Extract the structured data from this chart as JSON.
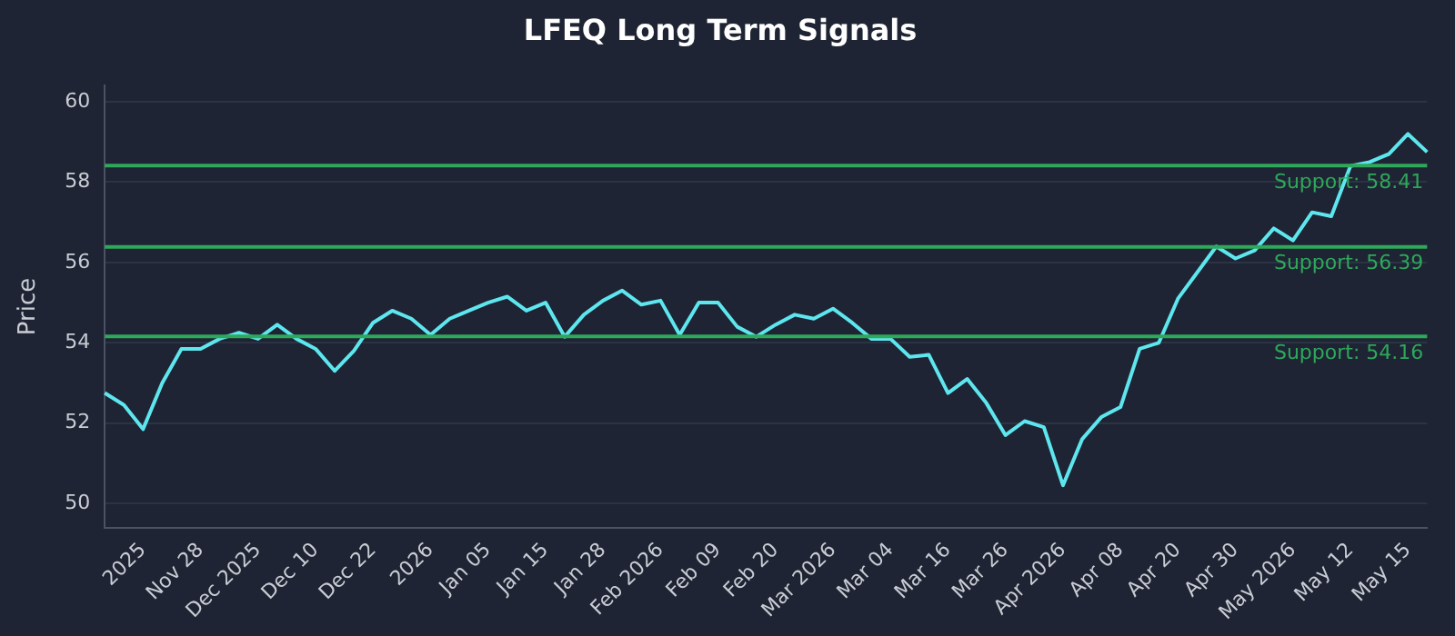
{
  "chart_data": {
    "type": "line",
    "title": "LFEQ Long Term Signals",
    "ylabel": "Price",
    "categories": [
      null,
      null,
      "2025",
      null,
      null,
      "Nov 28",
      null,
      null,
      "Dec 2025",
      null,
      null,
      "Dec 10",
      null,
      null,
      "Dec 22",
      null,
      null,
      "2026",
      null,
      null,
      "Jan 05",
      null,
      null,
      "Jan 15",
      null,
      null,
      "Jan 28",
      null,
      null,
      "Feb 2026",
      null,
      null,
      "Feb 09",
      null,
      null,
      "Feb 20",
      null,
      null,
      "Mar 2026",
      null,
      null,
      "Mar 04",
      null,
      null,
      "Mar 16",
      null,
      null,
      "Mar 26",
      null,
      null,
      "Apr 2026",
      null,
      null,
      "Apr 08",
      null,
      null,
      "Apr 20",
      null,
      null,
      "Apr 30",
      null,
      null,
      "May 2026",
      null,
      null,
      "May 12",
      null,
      null,
      "May 15",
      null
    ],
    "series": [
      {
        "color": "#5ee6ee",
        "values": [
          52.75,
          52.45,
          51.85,
          53.0,
          53.85,
          53.85,
          54.1,
          54.25,
          54.1,
          54.45,
          54.1,
          53.85,
          53.3,
          53.8,
          54.5,
          54.8,
          54.6,
          54.2,
          54.6,
          54.8,
          55.0,
          55.15,
          54.8,
          55.0,
          54.15,
          54.7,
          55.05,
          55.3,
          54.95,
          55.05,
          54.2,
          55.0,
          55.0,
          54.4,
          54.15,
          54.45,
          54.7,
          54.6,
          54.85,
          54.5,
          54.1,
          54.1,
          53.65,
          53.7,
          52.75,
          53.1,
          52.5,
          51.7,
          52.05,
          51.9,
          50.45,
          51.6,
          52.15,
          52.4,
          53.85,
          54.0,
          55.1,
          55.75,
          56.4,
          56.1,
          56.3,
          56.85,
          56.55,
          57.25,
          57.15,
          58.4,
          58.5,
          58.7,
          59.2,
          58.75
        ]
      }
    ],
    "ylim": [
      49.4,
      60.4
    ],
    "yticks": [
      50,
      52,
      54,
      56,
      58,
      60
    ],
    "grid": "y",
    "legend": false,
    "marker": "none",
    "line_style": "solid",
    "ref_lines": [
      {
        "axis": "y",
        "value": 58.41,
        "label": "Support: 58.41",
        "color": "#2ea85a"
      },
      {
        "axis": "y",
        "value": 56.39,
        "label": "Support: 56.39",
        "color": "#2ea85a"
      },
      {
        "axis": "y",
        "value": 54.16,
        "label": "Support: 54.16",
        "color": "#2ea85a"
      }
    ]
  }
}
